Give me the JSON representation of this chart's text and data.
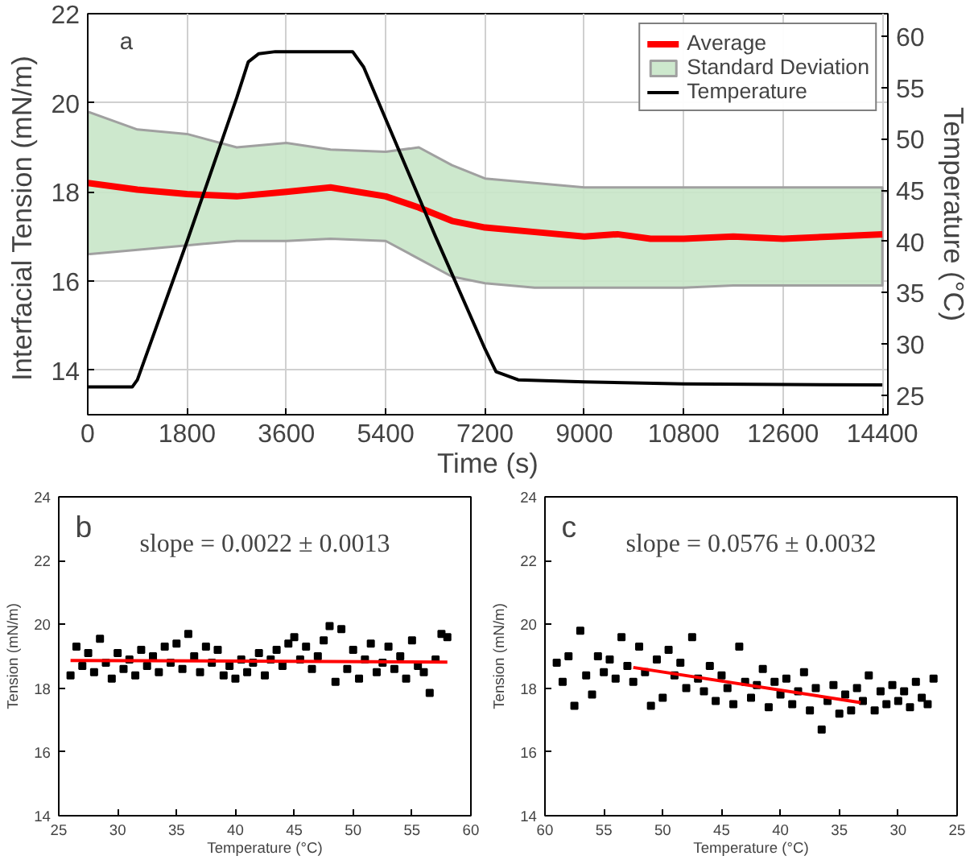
{
  "chart_data": [
    {
      "type": "line",
      "xlabel": "Time (s)",
      "ylabel": "Interfacial Tension  (mN/m)",
      "y2label": "Temperature (°C)",
      "xlim": [
        0,
        14500
      ],
      "xticks": [
        0,
        1800,
        3600,
        5400,
        7200,
        9000,
        10800,
        12600,
        14400
      ],
      "ylim": [
        13,
        22
      ],
      "yticks": [
        14,
        16,
        18,
        20,
        22
      ],
      "y2lim": [
        23.1,
        62.2
      ],
      "y2ticks": [
        25,
        30,
        35,
        40,
        45,
        50,
        55,
        60
      ],
      "grid": true,
      "legend": "top right",
      "annotations": [
        "a"
      ],
      "series": [
        {
          "name": "Average",
          "type": "line",
          "color": "#ff0000",
          "x": [
            0,
            900,
            1800,
            2700,
            3600,
            4400,
            5400,
            6000,
            6600,
            7200,
            8100,
            9000,
            9600,
            10200,
            10800,
            11700,
            12600,
            13500,
            14400
          ],
          "values": [
            18.2,
            18.05,
            17.95,
            17.9,
            18.0,
            18.1,
            17.9,
            17.65,
            17.35,
            17.2,
            17.1,
            17.0,
            17.05,
            16.95,
            16.95,
            17.0,
            16.95,
            17.0,
            17.05
          ],
          "lower": [
            16.6,
            16.7,
            16.8,
            16.9,
            16.9,
            16.95,
            16.9,
            16.5,
            16.1,
            15.95,
            15.85,
            15.85,
            15.85,
            15.85,
            15.85,
            15.9,
            15.9,
            15.9,
            15.9
          ],
          "upper": [
            19.8,
            19.4,
            19.3,
            19.0,
            19.1,
            18.95,
            18.9,
            19.0,
            18.6,
            18.3,
            18.2,
            18.1,
            18.1,
            18.1,
            18.1,
            18.1,
            18.1,
            18.1,
            18.1
          ]
        },
        {
          "name": "Standard Deviation",
          "type": "area",
          "color": "#c8e6c8"
        },
        {
          "name": "Temperature",
          "type": "line",
          "color": "#000000",
          "axis": "y2",
          "x": [
            0,
            806,
            900,
            1800,
            2700,
            2909,
            3100,
            3400,
            4800,
            5000,
            6300,
            7200,
            7400,
            7800,
            9000,
            10800,
            14400
          ],
          "values": [
            25.8,
            25.8,
            26.5,
            40,
            54,
            57.5,
            58.3,
            58.5,
            58.5,
            57,
            40.5,
            29.5,
            27.3,
            26.5,
            26.3,
            26.1,
            26.0
          ]
        }
      ]
    },
    {
      "type": "scatter",
      "marker": "square",
      "xlabel": "Temperature (°C)",
      "ylabel": "Tension (mN/m)",
      "xlim": [
        25,
        60
      ],
      "xticks": [
        25,
        30,
        35,
        40,
        45,
        50,
        55,
        60
      ],
      "ylim": [
        14,
        24
      ],
      "yticks": [
        14,
        16,
        18,
        20,
        22,
        24
      ],
      "annotations": [
        "b",
        "slope = 0.0022 ± 0.0013"
      ],
      "series": [
        {
          "color": "#000000",
          "x": [
            26,
            26.5,
            27,
            27.5,
            28,
            28.5,
            29,
            29.5,
            30,
            30.5,
            31,
            31.5,
            32,
            32.5,
            33,
            33.5,
            34,
            34.5,
            35,
            35.5,
            36,
            36.5,
            37,
            37.5,
            38,
            38.5,
            39,
            39.5,
            40,
            40.5,
            41,
            41.5,
            42,
            42.5,
            43,
            43.5,
            44,
            44.5,
            45,
            45.5,
            46,
            46.5,
            47,
            47.5,
            48,
            48.5,
            49,
            49.5,
            50,
            50.5,
            51,
            51.5,
            52,
            52.5,
            53,
            53.5,
            54,
            54.5,
            55,
            55.5,
            56,
            56.5,
            57,
            57.5,
            58
          ],
          "values": [
            18.4,
            19.3,
            18.7,
            19.1,
            18.5,
            19.55,
            18.8,
            18.3,
            19.1,
            18.6,
            18.9,
            18.4,
            19.2,
            18.7,
            19.0,
            18.5,
            19.3,
            18.8,
            19.4,
            18.6,
            19.7,
            19.0,
            18.5,
            19.3,
            18.8,
            19.2,
            18.4,
            18.7,
            18.3,
            18.9,
            18.5,
            18.8,
            19.1,
            18.4,
            18.9,
            19.2,
            18.7,
            19.4,
            19.6,
            18.9,
            19.3,
            18.6,
            19.0,
            19.5,
            19.95,
            18.2,
            19.85,
            18.6,
            19.2,
            18.3,
            18.9,
            19.4,
            18.5,
            18.8,
            19.3,
            18.6,
            19.0,
            18.3,
            19.5,
            18.7,
            18.5,
            17.85,
            18.9,
            19.7,
            19.6
          ]
        },
        {
          "type": "line",
          "marker": "none",
          "color": "#ff0000",
          "x": [
            26,
            58
          ],
          "values": [
            18.87,
            18.82
          ]
        }
      ]
    },
    {
      "type": "scatter",
      "marker": "square",
      "xlabel": "Temperature (°C)",
      "ylabel": "Tension (mN/m)",
      "xlim": [
        60,
        25
      ],
      "xticks": [
        60,
        55,
        50,
        45,
        40,
        35,
        30,
        25
      ],
      "ylim": [
        14,
        24
      ],
      "yticks": [
        14,
        16,
        18,
        20,
        22,
        24
      ],
      "annotations": [
        "c",
        "slope = 0.0576 ± 0.0032"
      ],
      "series": [
        {
          "color": "#000000",
          "x": [
            59,
            58.5,
            58,
            57.5,
            57,
            56.5,
            56,
            55.5,
            55,
            54.5,
            54,
            53.5,
            53,
            52.5,
            52,
            51.5,
            51,
            50.5,
            50,
            49.5,
            49,
            48.5,
            48,
            47.5,
            47,
            46.5,
            46,
            45.5,
            45,
            44.5,
            44,
            43.5,
            43,
            42.5,
            42,
            41.5,
            41,
            40.5,
            40,
            39.5,
            39,
            38.5,
            38,
            37.5,
            37,
            36.5,
            36,
            35.5,
            35,
            34.5,
            34,
            33.5,
            33,
            32.5,
            32,
            31.5,
            31,
            30.5,
            30,
            29.5,
            29,
            28.5,
            28,
            27.5,
            27
          ],
          "values": [
            18.8,
            18.2,
            19.0,
            17.45,
            19.8,
            18.4,
            17.8,
            19.0,
            18.5,
            18.9,
            18.3,
            19.6,
            18.7,
            18.2,
            19.3,
            18.5,
            17.45,
            18.9,
            17.7,
            19.2,
            18.4,
            18.8,
            18.0,
            19.6,
            18.3,
            17.9,
            18.7,
            17.6,
            18.4,
            18.0,
            17.5,
            19.3,
            18.2,
            17.7,
            18.1,
            18.6,
            17.4,
            18.2,
            17.8,
            18.3,
            17.5,
            17.9,
            18.5,
            17.3,
            18.0,
            16.7,
            17.6,
            18.1,
            17.2,
            17.8,
            17.3,
            18.0,
            17.6,
            18.4,
            17.3,
            17.9,
            17.5,
            18.1,
            17.6,
            17.9,
            17.4,
            18.2,
            17.7,
            17.5,
            18.3
          ]
        },
        {
          "type": "line",
          "marker": "none",
          "color": "#ff0000",
          "x": [
            52.5,
            33.2
          ],
          "values": [
            18.65,
            17.55
          ]
        }
      ]
    }
  ]
}
